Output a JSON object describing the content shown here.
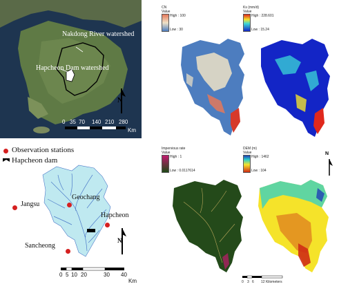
{
  "satellite_panel": {
    "label_nakdong": "Nakdong River watershed",
    "label_hapcheon": "Hapcheon Dam watershed",
    "scale_ticks": [
      "0",
      "35",
      "70",
      "140",
      "210",
      "280"
    ],
    "scale_unit": "Km",
    "north_label": "N"
  },
  "legend": {
    "observation_stations": "Observation stations",
    "hapcheon_dam": "Hapcheon dam"
  },
  "stations": [
    {
      "name": "Jangsu"
    },
    {
      "name": "Geochang"
    },
    {
      "name": "Hapcheon"
    },
    {
      "name": "Sancheong"
    }
  ],
  "watershed_scale": {
    "ticks": [
      "0",
      "5",
      "10",
      "20",
      "30",
      "40"
    ],
    "unit": "Km",
    "north_label": "N"
  },
  "maps": {
    "cn": {
      "title": "CN",
      "value_label": "Value",
      "high": "High : 100",
      "low": "Low : 30"
    },
    "ks": {
      "title": "Ks (mm/d)",
      "value_label": "Value",
      "high": "High : 228.601",
      "low": "Low : 15.24"
    },
    "impervious": {
      "title": "Impervious rate",
      "value_label": "Value",
      "high": "High : 1",
      "low": "Low : 0.0117614"
    },
    "dem": {
      "title": "DEM (m)",
      "value_label": "Value",
      "high": "High : 1462",
      "low": "Low : 104"
    }
  },
  "grid_scale": {
    "ticks": [
      "0",
      "3",
      "6",
      "12 Kilometers"
    ],
    "north_label": "N"
  },
  "colors": {
    "station_dot": "#d52020",
    "watershed_fill": "#bfe9f0",
    "river": "#4a78c8",
    "sea": "#1e3550"
  }
}
